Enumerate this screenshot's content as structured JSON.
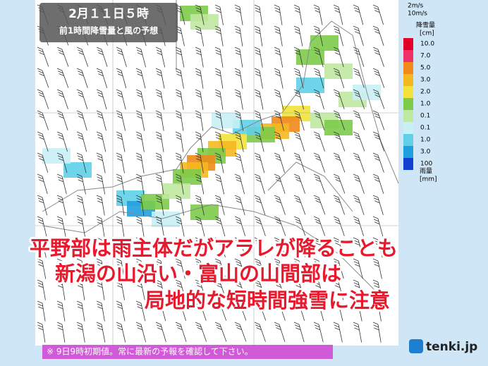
{
  "header": {
    "title": "2月１１日５時",
    "subtitle": "前1時間降雪量と風の予想"
  },
  "wind_legend": {
    "small": "2m/s",
    "large": "10m/s"
  },
  "legend": {
    "snow_title": "降雪量",
    "snow_unit": "[cm]",
    "rain_title": "雨量",
    "rain_unit": "[mm]",
    "items": [
      {
        "label": "10.0",
        "color": "#e0002a"
      },
      {
        "label": "7.0",
        "color": "#f0306a"
      },
      {
        "label": "5.0",
        "color": "#f08a1c"
      },
      {
        "label": "3.0",
        "color": "#f5b820"
      },
      {
        "label": "2.0",
        "color": "#f2e23a"
      },
      {
        "label": "1.0",
        "color": "#7ccb4a"
      },
      {
        "label": "0.1",
        "color": "#bfe8a0"
      },
      {
        "label": "0.1",
        "color": "#c8f0f5"
      },
      {
        "label": "1.0",
        "color": "#5fd0e8"
      },
      {
        "label": "3.0",
        "color": "#1ea0e0"
      },
      {
        "label": "100",
        "color": "#1040d0"
      }
    ]
  },
  "headline": [
    "平野部は雨主体だがアラレが降ることも",
    "新潟の山沿い・富山の山間部は",
    "局地的な短時間強雪に注意"
  ],
  "footer": "※ 9日9時初期値。常に最新の予報を確認して下さい。",
  "logo": "tenki.jp"
}
